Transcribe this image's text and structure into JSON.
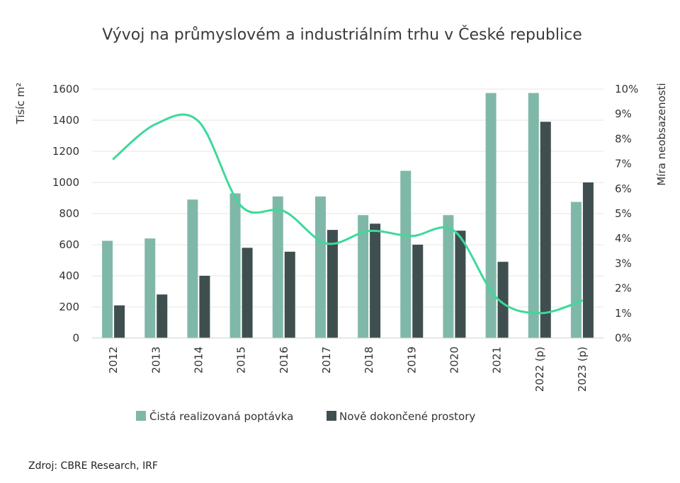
{
  "chart_data": {
    "type": "bar",
    "title": "Vývoj na průmyslovém a industriálním trhu v České republice",
    "categories": [
      "2012",
      "2013",
      "2014",
      "2015",
      "2016",
      "2017",
      "2018",
      "2019",
      "2020",
      "2021",
      "2022 (p)",
      "2023 (p)"
    ],
    "series": [
      {
        "name": "Čistá realizovaná poptávka",
        "type": "bar",
        "axis": "left",
        "color": "#7fb8a8",
        "values": [
          625,
          640,
          890,
          930,
          910,
          910,
          790,
          1075,
          790,
          1575,
          1575,
          875
        ]
      },
      {
        "name": "Nově dokončené prostory",
        "type": "bar",
        "axis": "left",
        "color": "#3f4f50",
        "values": [
          210,
          280,
          400,
          580,
          555,
          695,
          735,
          600,
          690,
          490,
          1390,
          1000
        ]
      },
      {
        "name": "",
        "type": "line",
        "axis": "right",
        "color": "#3ed99a",
        "values": [
          7.2,
          8.6,
          8.7,
          5.3,
          5.1,
          3.8,
          4.3,
          4.1,
          4.3,
          1.6,
          1.0,
          1.5
        ]
      }
    ],
    "ylabel": "Tisíc m²",
    "ylim": [
      0,
      1600
    ],
    "yticks": [
      "0",
      "200",
      "400",
      "600",
      "800",
      "1000",
      "1200",
      "1400",
      "1600"
    ],
    "y2label": "Míra neobsazenosti",
    "y2lim": [
      0,
      10
    ],
    "y2ticks": [
      "0%",
      "1%",
      "2%",
      "3%",
      "4%",
      "5%",
      "6%",
      "7%",
      "8%",
      "9%",
      "10%"
    ],
    "grid": true,
    "legend_position": "bottom"
  },
  "source": "Zdroj: CBRE Research, IRF"
}
